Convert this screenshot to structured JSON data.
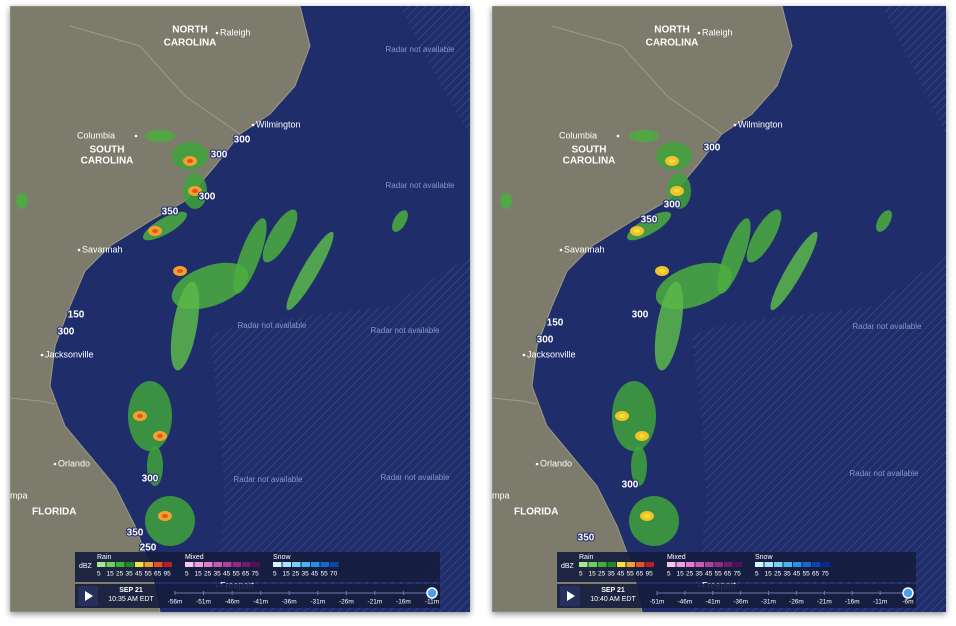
{
  "panels": [
    {
      "places": [
        "NORTH",
        "CAROLINA",
        "Raleigh",
        "Wilmington",
        "Columbia",
        "SOUTH",
        "CAROLINA",
        "Savannah",
        "Jacksonville",
        "Orlando",
        "mpa",
        "FLORIDA",
        "Freeport"
      ],
      "radar_notes": [
        "Radar not available",
        "Radar not available",
        "Radar not available",
        "Radar not available",
        "Radar not available",
        "Radar not available"
      ],
      "echo_tops": [
        300,
        300,
        300,
        350,
        150,
        300,
        300,
        350,
        250
      ],
      "legend": {
        "unit": "dBZ",
        "groups": [
          {
            "name": "Rain",
            "scale": [
              5,
              15,
              25,
              35,
              45,
              55,
              65,
              95
            ]
          },
          {
            "name": "Mixed",
            "scale": [
              5,
              15,
              25,
              35,
              45,
              55,
              65,
              75
            ]
          },
          {
            "name": "Snow",
            "scale": [
              5,
              15,
              25,
              35,
              45,
              55,
              70
            ]
          }
        ]
      },
      "timeline": {
        "date": "SEP 21",
        "time": "10:35 AM EDT",
        "steps": [
          "-56m",
          "-51m",
          "-46m",
          "-41m",
          "-36m",
          "-31m",
          "-26m",
          "-21m",
          "-16m",
          "-11m"
        ]
      }
    },
    {
      "places": [
        "NORTH",
        "CAROLINA",
        "Raleigh",
        "Wilmington",
        "Columbia",
        "SOUTH",
        "CAROLINA",
        "Savannah",
        "Jacksonville",
        "Orlando",
        "mpa",
        "FLORIDA",
        "Freeport"
      ],
      "radar_notes": [
        "Radar not available",
        "Radar not available"
      ],
      "echo_tops": [
        300,
        300,
        350,
        300,
        150,
        300,
        300,
        350
      ],
      "legend": {
        "unit": "dBZ",
        "groups": [
          {
            "name": "Rain",
            "scale": [
              5,
              15,
              25,
              35,
              45,
              55,
              65,
              95
            ]
          },
          {
            "name": "Mixed",
            "scale": [
              5,
              15,
              25,
              35,
              45,
              55,
              65,
              75
            ]
          },
          {
            "name": "Snow",
            "scale": [
              5,
              15,
              25,
              35,
              45,
              55,
              65,
              75
            ]
          }
        ]
      },
      "timeline": {
        "date": "SEP 21",
        "time": "10:40 AM EDT",
        "steps": [
          "-51m",
          "-46m",
          "-41m",
          "-36m",
          "-31m",
          "-26m",
          "-21m",
          "-16m",
          "-11m",
          "-6m"
        ]
      }
    }
  ]
}
